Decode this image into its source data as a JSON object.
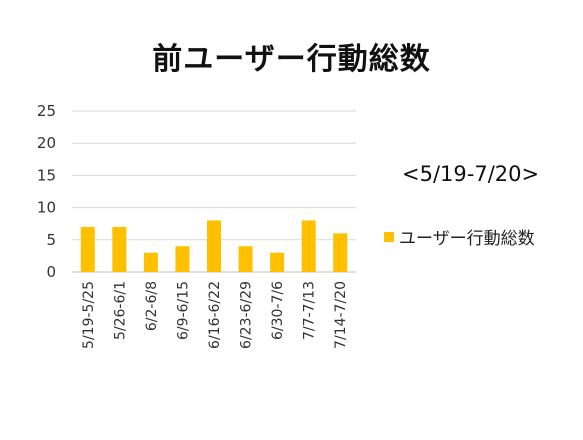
{
  "chart_data": {
    "type": "bar",
    "title": "前ユーザー行動総数",
    "categories": [
      "5/19-5/25",
      "5/26-6/1",
      "6/2-6/8",
      "6/9-6/15",
      "6/16-6/22",
      "6/23-6/29",
      "6/30-7/6",
      "7/7-7/13",
      "7/14-7/20"
    ],
    "series": [
      {
        "name": "ユーザー行動総数",
        "values": [
          7,
          7,
          3,
          4,
          8,
          4,
          3,
          8,
          6
        ],
        "color": "#FFC000"
      }
    ],
    "ylim": [
      0,
      25
    ],
    "yticks": [
      0,
      5,
      10,
      15,
      20,
      25
    ],
    "grid": true,
    "legend_position": "right",
    "xlabel": "",
    "ylabel": "",
    "annotation": "<5/19-7/20>"
  }
}
